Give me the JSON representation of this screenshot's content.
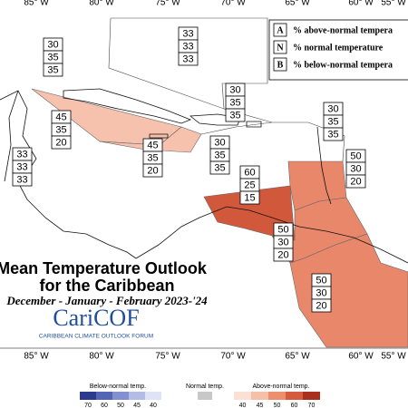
{
  "longitude_labels_top": [
    "W",
    "85° W",
    "80° W",
    "75° W",
    "70° W",
    "65° W",
    "60° W",
    "55° W"
  ],
  "longitude_labels_bottom": [
    "W",
    "85° W",
    "80° W",
    "75° W",
    "70° W",
    "65° W",
    "60° W",
    "55° W"
  ],
  "key": {
    "rows": [
      {
        "letter": "A",
        "text": "% above-normal tempera"
      },
      {
        "letter": "N",
        "text": "% normal temperature"
      },
      {
        "letter": "B",
        "text": "% below-normal tempera"
      }
    ]
  },
  "title": {
    "line1": "Mean Temperature Outlook",
    "line2": "for the Caribbean",
    "season": "December - January - February 2023-'24",
    "logo": "CariCOF",
    "logo_subtitle": "CARIBBEAN CLIMATE OUTLOOK FORUM"
  },
  "zones": [
    {
      "above": 33,
      "normal": 33,
      "below": 33
    },
    {
      "above": 30,
      "normal": 35,
      "below": 35
    },
    {
      "above": 30,
      "normal": 35,
      "below": 35
    },
    {
      "above": 45,
      "normal": 35,
      "below": 20
    },
    {
      "above": 30,
      "normal": 35,
      "below": 35
    },
    {
      "above": 45,
      "normal": 35,
      "below": 20
    },
    {
      "above": 30,
      "normal": 35,
      "below": 35
    },
    {
      "above": 33,
      "normal": 33,
      "below": 33
    },
    {
      "above": 50,
      "normal": 30,
      "below": 20
    },
    {
      "above": 60,
      "normal": 25,
      "below": 15
    },
    {
      "above": 50,
      "normal": 30,
      "below": 20
    },
    {
      "above": 50,
      "normal": 30,
      "below": 20
    }
  ],
  "legend": {
    "below_title": "Below-normal temp.",
    "below_levels": [
      70,
      60,
      50,
      45,
      40
    ],
    "normal_title": "Normal temp.",
    "above_title": "Above-normal temp.",
    "above_levels": [
      40,
      45,
      50,
      60,
      70
    ]
  }
}
